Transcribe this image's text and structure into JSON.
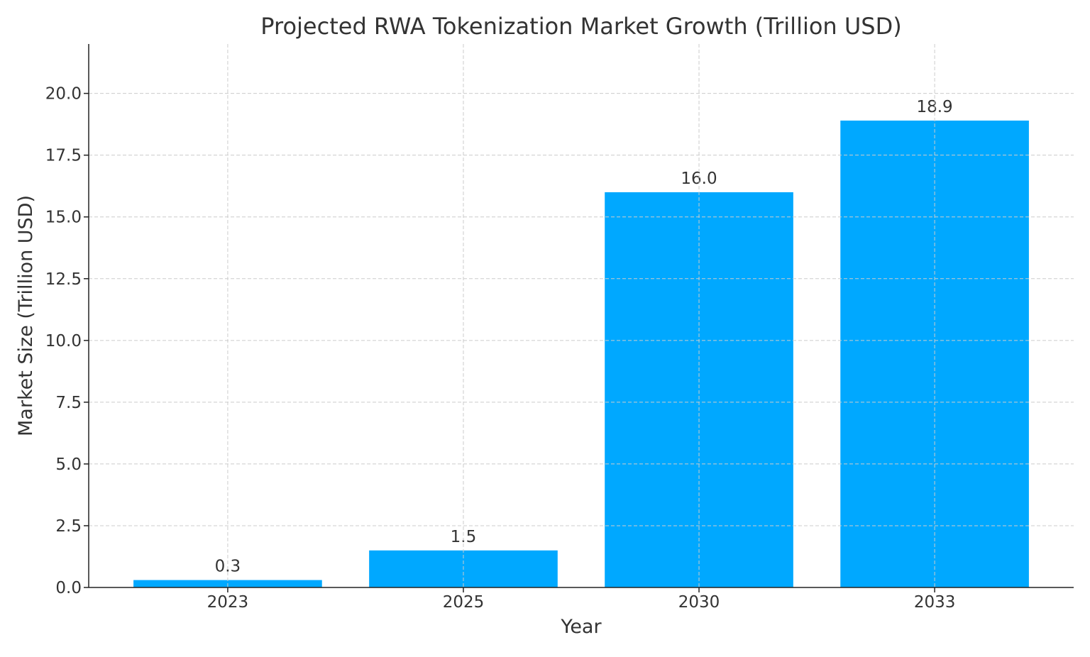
{
  "chart_data": {
    "type": "bar",
    "title": "Projected RWA Tokenization Market Growth (Trillion USD)",
    "xlabel": "Year",
    "ylabel": "Market Size (Trillion USD)",
    "categories": [
      "2023",
      "2025",
      "2030",
      "2033"
    ],
    "values": [
      0.3,
      1.5,
      16.0,
      18.9
    ],
    "data_labels": [
      "0.3",
      "1.5",
      "16.0",
      "18.9"
    ],
    "ylim": [
      0,
      22
    ],
    "yticks": [
      0,
      2.5,
      5,
      7.5,
      10,
      12.5,
      15,
      17.5,
      20
    ],
    "ytick_labels": [
      "0.0",
      "2.5",
      "5.0",
      "7.5",
      "10.0",
      "12.5",
      "15.0",
      "17.5",
      "20.0"
    ],
    "grid": true,
    "bar_color": "#00A8FF"
  }
}
